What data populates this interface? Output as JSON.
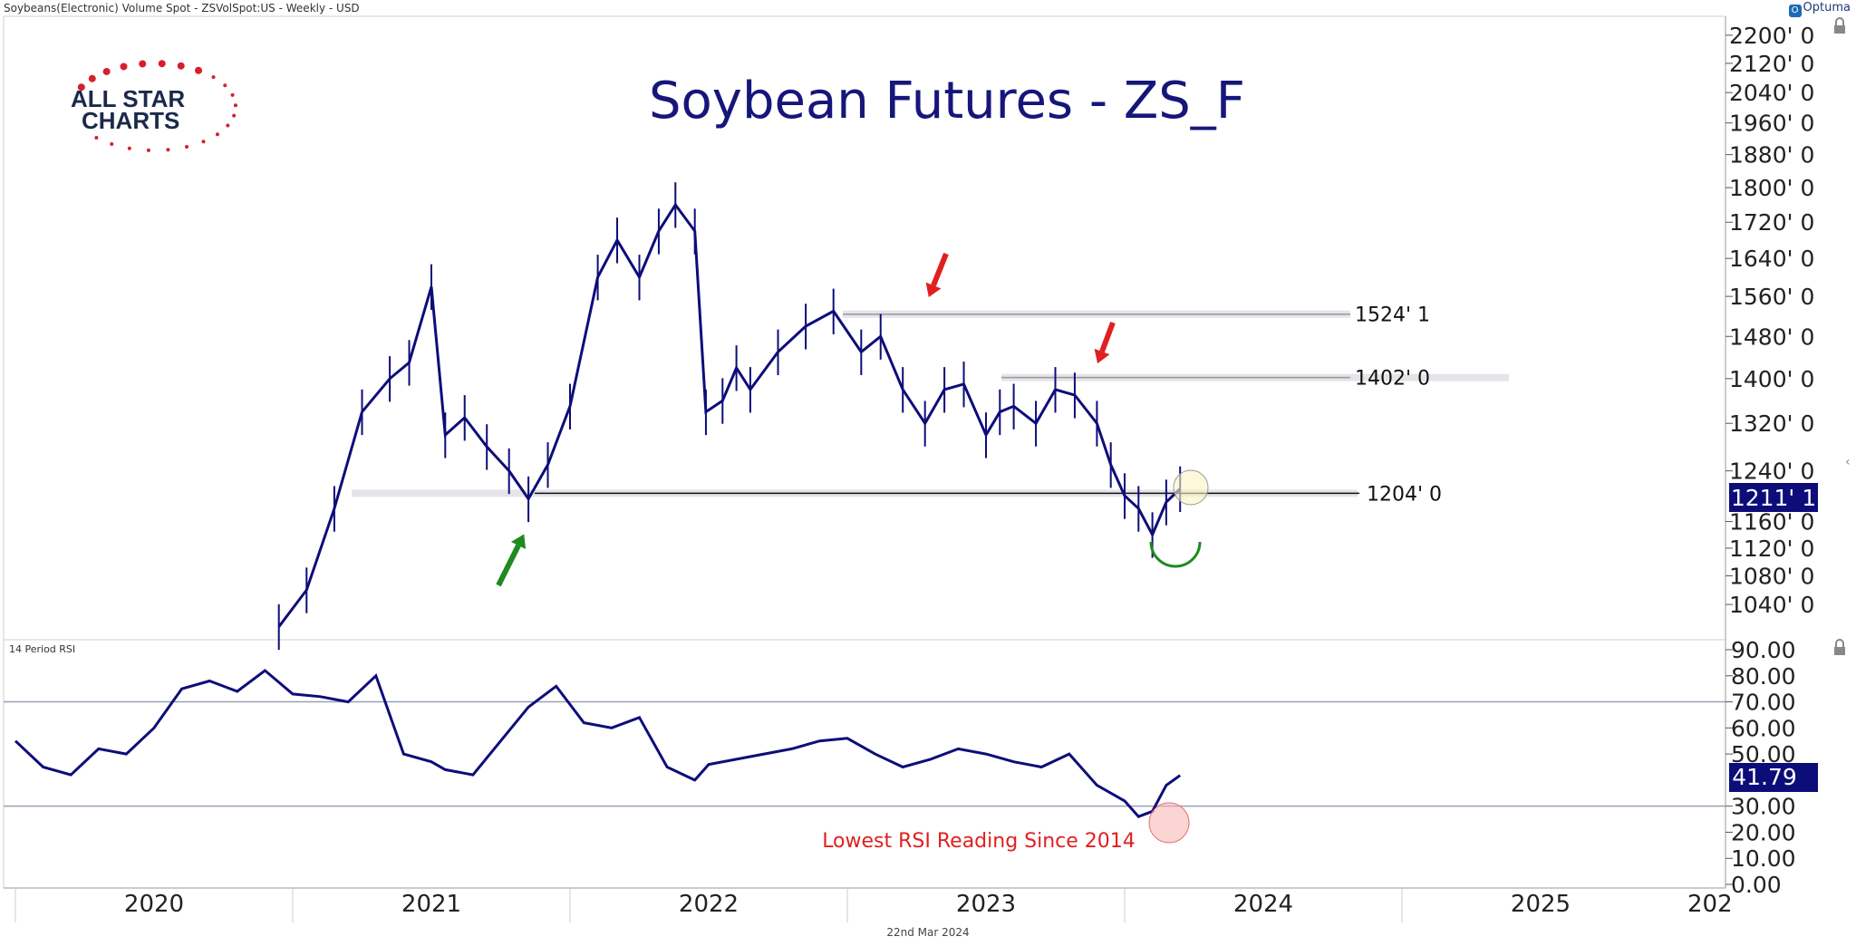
{
  "header": {
    "instrument": "Soybeans(Electronic) Volume Spot - ZSVolSpot:US - Weekly - USD",
    "brand": "Optuma"
  },
  "logo": {
    "line1": "ALL STAR",
    "line2": "CHARTS"
  },
  "footer": {
    "date": "22nd Mar 2024"
  },
  "colors": {
    "price": "#0d0d7a",
    "accent": "#0d0d7a",
    "arrow_red": "#e02020",
    "arrow_green": "#1f8a1f",
    "rsi_note": "#e02020"
  },
  "chart_data": [
    {
      "type": "line",
      "title": "Soybean Futures - ZS_F",
      "price_panel": true,
      "ylim": [
        1000,
        2200
      ],
      "y_ticks": [
        "2200' 0",
        "2120' 0",
        "2040' 0",
        "1960' 0",
        "1880' 0",
        "1800' 0",
        "1720' 0",
        "1640' 0",
        "1560' 0",
        "1480' 0",
        "1400' 0",
        "1320' 0",
        "1240' 0",
        "1160' 0",
        "1120' 0",
        "1080' 0",
        "1040' 0"
      ],
      "x_labels": [
        "2020",
        "2021",
        "2022",
        "2023",
        "2024",
        "2025",
        "202"
      ],
      "current_price": "1211' 1",
      "levels": [
        {
          "value": 1524,
          "label": "1524' 1"
        },
        {
          "value": 1402,
          "label": "1402' 0"
        },
        {
          "value": 1204,
          "label": "1204' 0"
        }
      ],
      "x": [
        2020.45,
        2020.55,
        2020.65,
        2020.75,
        2020.85,
        2020.92,
        2021.0,
        2021.05,
        2021.12,
        2021.2,
        2021.28,
        2021.35,
        2021.42,
        2021.5,
        2021.6,
        2021.67,
        2021.75,
        2021.82,
        2021.88,
        2021.95,
        2021.99,
        2022.05,
        2022.1,
        2022.15,
        2022.25,
        2022.35,
        2022.45,
        2022.55,
        2022.62,
        2022.7,
        2022.78,
        2022.85,
        2022.92,
        2023.0,
        2023.05,
        2023.1,
        2023.18,
        2023.25,
        2023.32,
        2023.4,
        2023.45,
        2023.5,
        2023.55,
        2023.6,
        2023.65,
        2023.7
      ],
      "values": [
        1010,
        1060,
        1180,
        1340,
        1400,
        1430,
        1580,
        1300,
        1330,
        1280,
        1240,
        1195,
        1250,
        1350,
        1600,
        1680,
        1600,
        1700,
        1760,
        1700,
        1340,
        1360,
        1420,
        1380,
        1450,
        1500,
        1530,
        1450,
        1480,
        1380,
        1320,
        1380,
        1390,
        1300,
        1340,
        1350,
        1320,
        1380,
        1370,
        1320,
        1250,
        1200,
        1180,
        1140,
        1190,
        1211
      ],
      "annotations": []
    },
    {
      "type": "line",
      "title": "14 Period RSI",
      "ylim": [
        0,
        90
      ],
      "y_ticks": [
        "90.00",
        "80.00",
        "70.00",
        "60.00",
        "50.00",
        "30.00",
        "20.00",
        "10.00",
        "0.00"
      ],
      "hlines": [
        70,
        30
      ],
      "current_value": "41.79",
      "annotation": "Lowest RSI Reading Since 2014",
      "x": [
        2019.5,
        2019.6,
        2019.7,
        2019.8,
        2019.9,
        2020.0,
        2020.1,
        2020.2,
        2020.3,
        2020.4,
        2020.5,
        2020.6,
        2020.7,
        2020.8,
        2020.9,
        2021.0,
        2021.05,
        2021.15,
        2021.25,
        2021.35,
        2021.45,
        2021.55,
        2021.65,
        2021.75,
        2021.85,
        2021.95,
        2022.0,
        2022.1,
        2022.2,
        2022.3,
        2022.4,
        2022.5,
        2022.6,
        2022.7,
        2022.8,
        2022.9,
        2023.0,
        2023.1,
        2023.2,
        2023.3,
        2023.4,
        2023.5,
        2023.55,
        2023.6,
        2023.65,
        2023.7
      ],
      "values": [
        55,
        45,
        42,
        52,
        50,
        60,
        75,
        78,
        74,
        82,
        73,
        72,
        70,
        80,
        50,
        47,
        44,
        42,
        55,
        68,
        76,
        62,
        60,
        64,
        45,
        40,
        46,
        48,
        50,
        52,
        55,
        56,
        50,
        45,
        48,
        52,
        50,
        47,
        45,
        50,
        38,
        32,
        26,
        28,
        38,
        41.79
      ]
    }
  ]
}
